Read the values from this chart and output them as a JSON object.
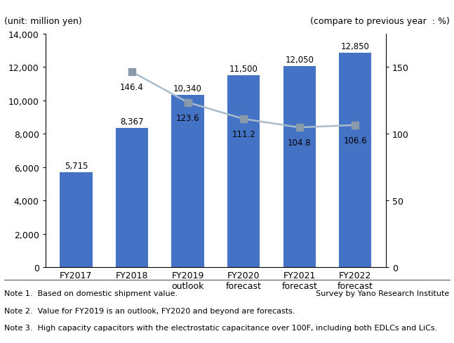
{
  "categories": [
    "FY2017",
    "FY2018",
    "FY2019\noutlook",
    "FY2020\nforecast",
    "FY2021\nforecast",
    "FY2022\nforecast"
  ],
  "bar_values": [
    5715,
    8367,
    10340,
    11500,
    12050,
    12850
  ],
  "bar_labels": [
    "5,715",
    "8,367",
    "10,340",
    "11,500",
    "12,050",
    "12,850"
  ],
  "line_values": [
    null,
    146.4,
    123.6,
    111.2,
    104.8,
    106.6
  ],
  "line_labels": [
    "",
    "146.4",
    "123.6",
    "111.2",
    "104.8",
    "106.6"
  ],
  "bar_color": "#4472C4",
  "line_color": "#AABCCC",
  "marker_color": "#8899AA",
  "left_ylabel": "(unit: million yen)",
  "right_ylabel": "(compare to previous year  : %)",
  "ylim_left": [
    0,
    14000
  ],
  "ylim_right": [
    0,
    175
  ],
  "yticks_left": [
    0,
    2000,
    4000,
    6000,
    8000,
    10000,
    12000,
    14000
  ],
  "yticks_right": [
    0,
    50,
    100,
    150
  ],
  "note1_left": "Note 1.  Based on domestic shipment value.",
  "note1_right": "Survey by Yano Research Institute",
  "note2": "Note 2.  Value for FY2019 is an outlook, FY2020 and beyond are forecasts.",
  "note3": "Note 3.  High capacity capacitors with the electrostatic capacitance over 100F, including both EDLCs and LiCs.",
  "bg_color": "#FFFFFF",
  "figsize": [
    6.47,
    4.89
  ],
  "dpi": 100
}
